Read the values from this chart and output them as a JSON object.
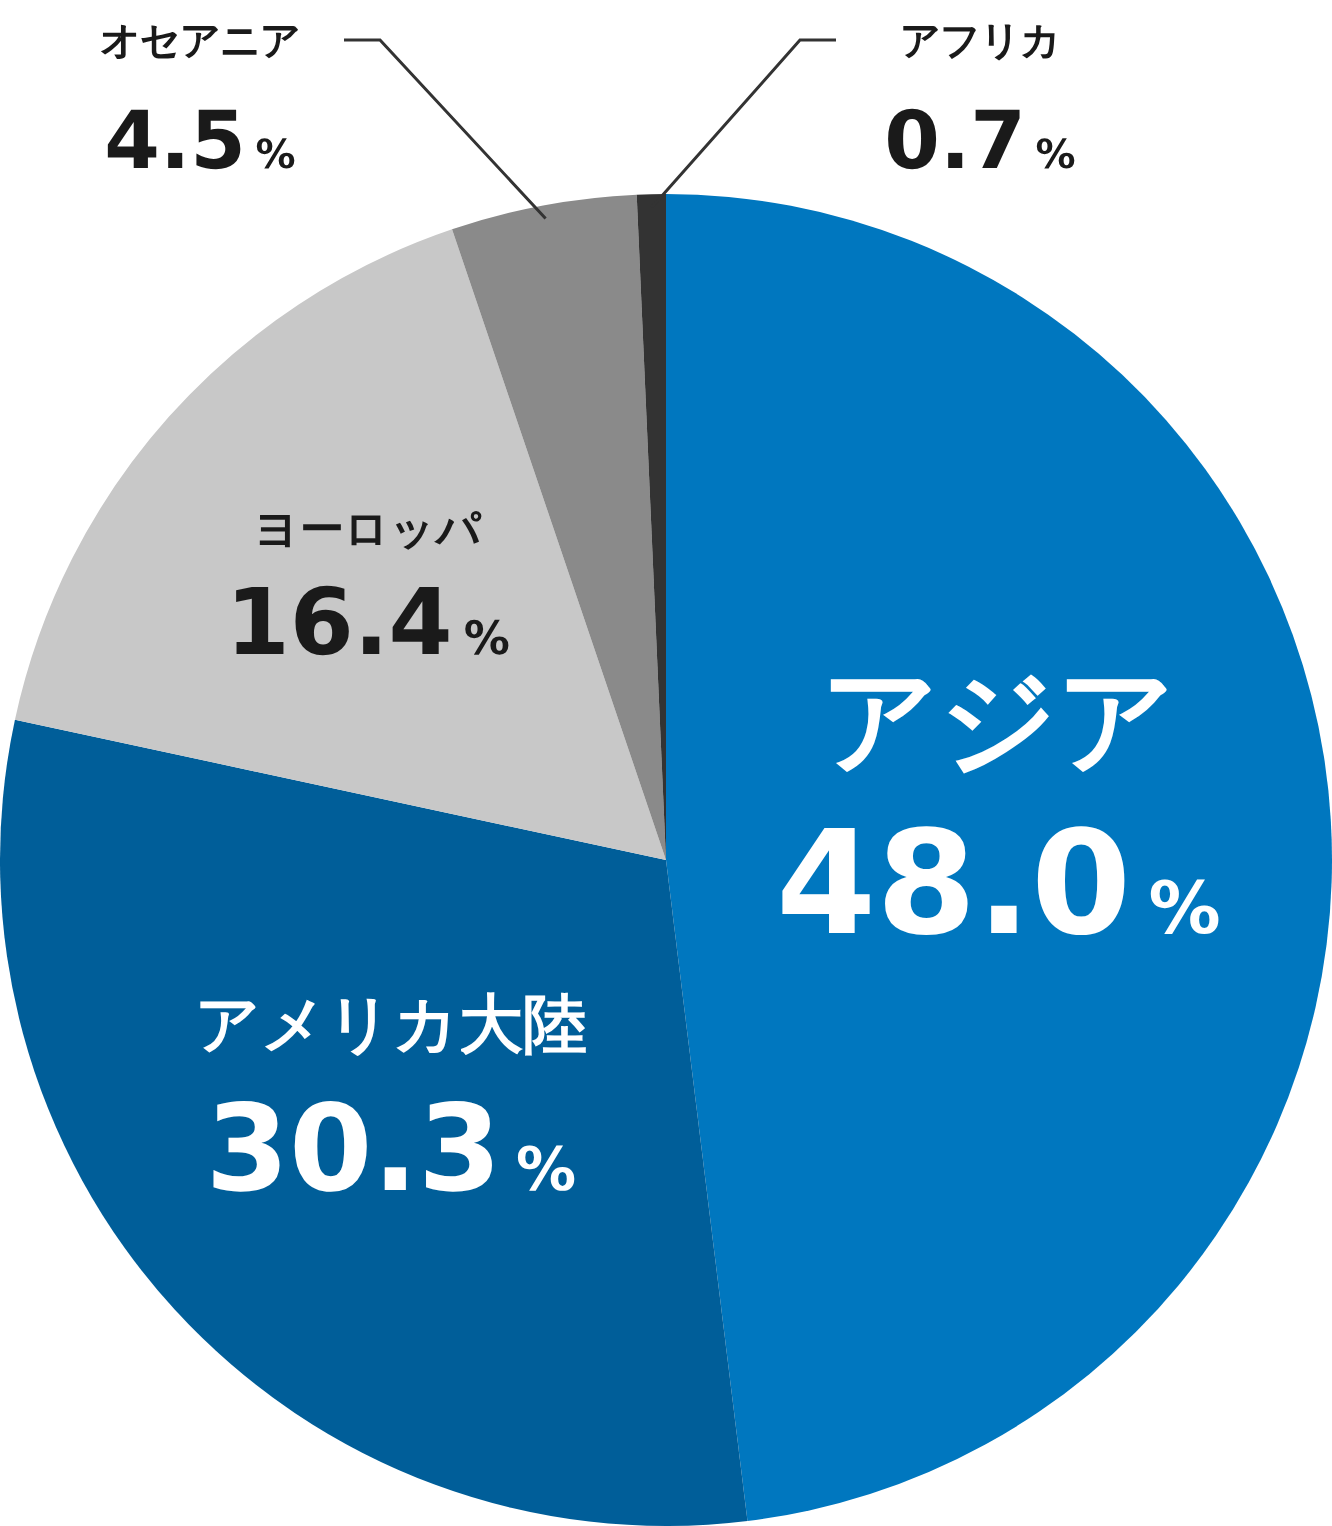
{
  "chart_data": {
    "type": "pie",
    "categories": [
      "アジア",
      "アメリカ大陸",
      "ヨーロッパ",
      "オセアニア",
      "アフリカ"
    ],
    "values": [
      48.0,
      30.3,
      16.4,
      4.5,
      0.7
    ],
    "value_labels": [
      "48.0%",
      "30.3%",
      "16.4%",
      "4.5%",
      "0.7%"
    ],
    "colors": [
      "#0077bf",
      "#005e99",
      "#c8c8c8",
      "#8a8a8a",
      "#333333"
    ],
    "legend": false
  }
}
